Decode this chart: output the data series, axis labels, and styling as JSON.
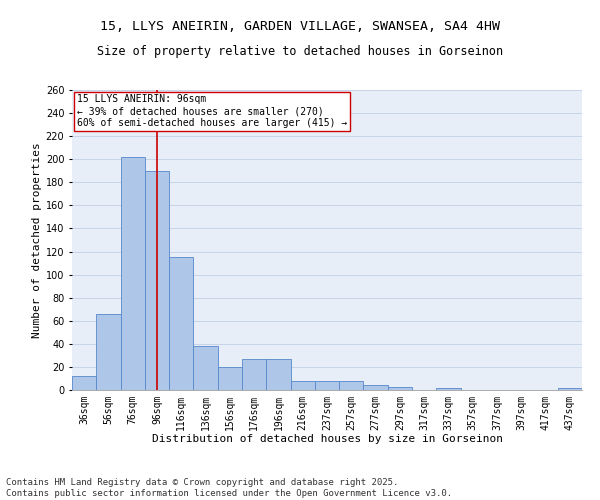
{
  "title1": "15, LLYS ANEIRIN, GARDEN VILLAGE, SWANSEA, SA4 4HW",
  "title2": "Size of property relative to detached houses in Gorseinon",
  "xlabel": "Distribution of detached houses by size in Gorseinon",
  "ylabel": "Number of detached properties",
  "categories": [
    "36sqm",
    "56sqm",
    "76sqm",
    "96sqm",
    "116sqm",
    "136sqm",
    "156sqm",
    "176sqm",
    "196sqm",
    "216sqm",
    "237sqm",
    "257sqm",
    "277sqm",
    "297sqm",
    "317sqm",
    "337sqm",
    "357sqm",
    "377sqm",
    "397sqm",
    "417sqm",
    "437sqm"
  ],
  "values": [
    12,
    66,
    202,
    190,
    115,
    38,
    20,
    27,
    27,
    8,
    8,
    8,
    4,
    3,
    0,
    2,
    0,
    0,
    0,
    0,
    2
  ],
  "bar_color": "#aec6e8",
  "bar_edge_color": "#5588cc",
  "vline_x": 3,
  "vline_color": "#cc0000",
  "annotation_text": "15 LLYS ANEIRIN: 96sqm\n← 39% of detached houses are smaller (270)\n60% of semi-detached houses are larger (415) →",
  "annotation_box_color": "#cc0000",
  "ylim": [
    0,
    260
  ],
  "yticks": [
    0,
    20,
    40,
    60,
    80,
    100,
    120,
    140,
    160,
    180,
    200,
    220,
    240,
    260
  ],
  "grid_color": "#c8d4e8",
  "background_color": "#e8eef8",
  "footer_text": "Contains HM Land Registry data © Crown copyright and database right 2025.\nContains public sector information licensed under the Open Government Licence v3.0.",
  "title_fontsize": 9.5,
  "subtitle_fontsize": 8.5,
  "axis_label_fontsize": 8,
  "tick_fontsize": 7,
  "footer_fontsize": 6.5,
  "annotation_fontsize": 7
}
